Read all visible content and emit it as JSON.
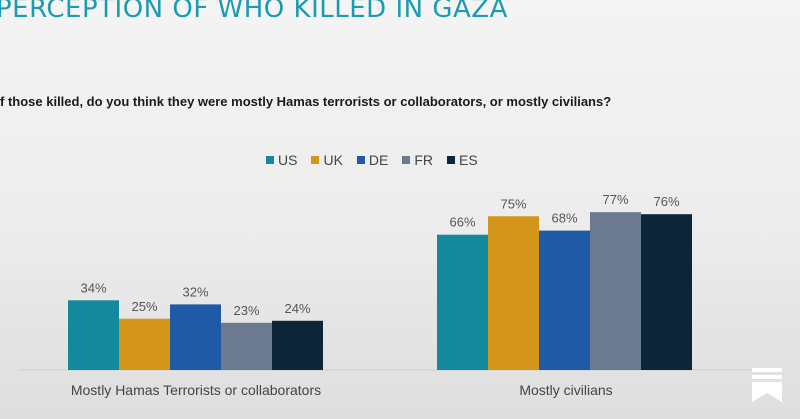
{
  "title": "PERCEPTION OF WHO KILLED IN GAZA",
  "question": "f those killed, do you think they were mostly Hamas terrorists or collaborators, or mostly civilians?",
  "colors": {
    "US": "#14899e",
    "UK": "#d4961a",
    "DE": "#1f5aa6",
    "FR": "#6b7a90",
    "ES": "#0d2538"
  },
  "chart_data": {
    "type": "bar",
    "categories": [
      "Mostly Hamas Terrorists or collaborators",
      "Mostly civilians"
    ],
    "series": [
      {
        "name": "US",
        "values": [
          34,
          66
        ],
        "labels": [
          "34%",
          "66%"
        ]
      },
      {
        "name": "UK",
        "values": [
          25,
          75
        ],
        "labels": [
          "25%",
          "75%"
        ]
      },
      {
        "name": "DE",
        "values": [
          32,
          68
        ],
        "labels": [
          "32%",
          "68%"
        ]
      },
      {
        "name": "FR",
        "values": [
          23,
          77
        ],
        "labels": [
          "23%",
          "77%"
        ]
      },
      {
        "name": "ES",
        "values": [
          24,
          76
        ],
        "labels": [
          "24%",
          "76%"
        ]
      }
    ],
    "ylim": [
      0,
      100
    ],
    "legend": "top-center",
    "grid": false
  }
}
